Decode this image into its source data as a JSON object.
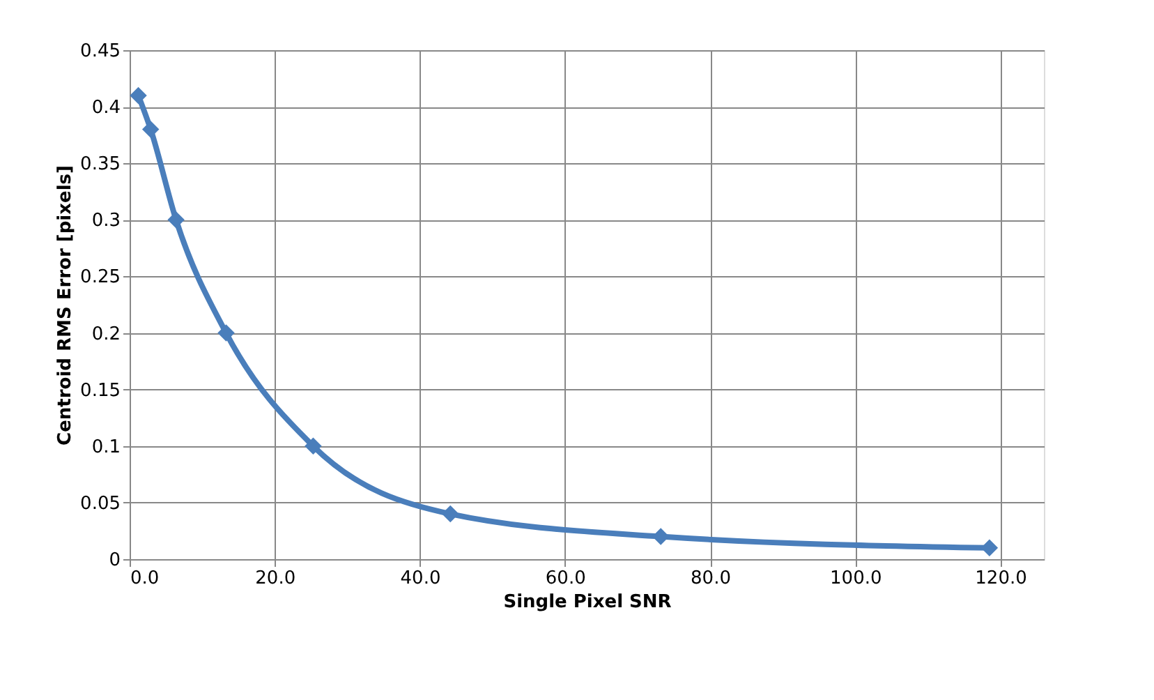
{
  "chart_data": {
    "type": "line",
    "xlabel": "Single Pixel SNR",
    "ylabel": "Centroid RMS Error [pixels]",
    "series": [
      {
        "color": "#4a7ebb",
        "x": [
          1.2,
          2.9,
          6.4,
          13.3,
          25.3,
          44.2,
          73.2,
          118.5
        ],
        "values": [
          0.41,
          0.38,
          0.3,
          0.2,
          0.1,
          0.04,
          0.02,
          0.01
        ]
      }
    ],
    "xlim": [
      0,
      126
    ],
    "ylim": [
      0,
      0.45
    ],
    "xticks": [
      {
        "value": 0,
        "label": "0.0"
      },
      {
        "value": 20,
        "label": "20.0"
      },
      {
        "value": 40,
        "label": "40.0"
      },
      {
        "value": 60,
        "label": "60.0"
      },
      {
        "value": 80,
        "label": "80.0"
      },
      {
        "value": 100,
        "label": "100.0"
      },
      {
        "value": 120,
        "label": "120.0"
      }
    ],
    "yticks": [
      0,
      0.05,
      0.1,
      0.15,
      0.2,
      0.25,
      0.3,
      0.35,
      0.4,
      0.45
    ],
    "grid": true,
    "marker": "diamond",
    "line_style": "solid"
  }
}
